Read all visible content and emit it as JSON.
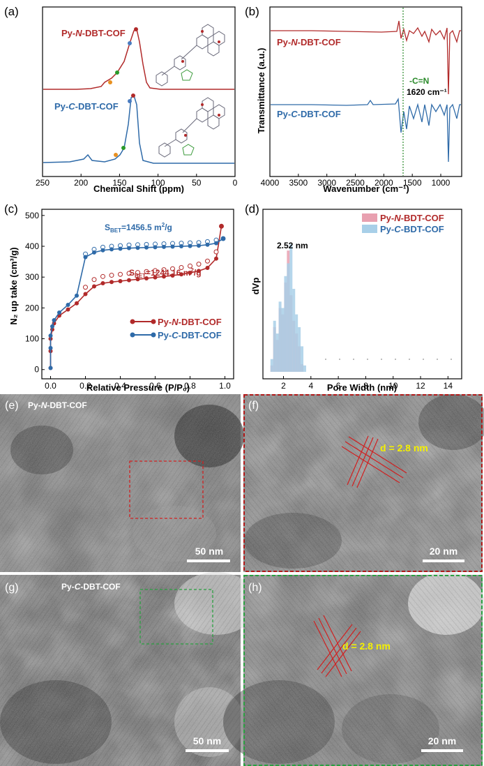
{
  "colors": {
    "red": "#b12a2a",
    "blue": "#2e6aa8",
    "green": "#2a8a2a",
    "orange": "#e89020",
    "yellow": "#f4f000",
    "pinkbar": "#e8a0b0",
    "bluebar": "#a8cfe8"
  },
  "panels": {
    "a": {
      "tag": "(a)",
      "series": [
        "Py-N-DBT-COF",
        "Py-C-DBT-COF"
      ],
      "label_red_pre": "Py-",
      "label_red_it": "N",
      "label_red_post": "-DBT-COF",
      "label_blue_pre": "Py-",
      "label_blue_it": "C",
      "label_blue_post": "-DBT-COF",
      "xlabel": "Chemical Shift (ppm)",
      "xticks": [
        "250",
        "200",
        "150",
        "100",
        "50",
        "0"
      ]
    },
    "b": {
      "tag": "(b)",
      "label_red_pre": "Py-",
      "label_red_it": "N",
      "label_red_post": "-DBT-COF",
      "label_blue_pre": "Py-",
      "label_blue_it": "C",
      "label_blue_post": "-DBT-COF",
      "ylabel": "Transmittance (a.u.)",
      "xlabel": "Wavenumber (cm⁻¹)",
      "annot_bond": "-C=N",
      "annot_wave": "1620 cm⁻¹",
      "xticks": [
        "4000",
        "3500",
        "3000",
        "2500",
        "2000",
        "1500",
        "1000"
      ]
    },
    "c": {
      "tag": "(c)",
      "ylabel": "N₂ up take  (cm³/g)",
      "xlabel": "Relative Pressure (P/P₀)",
      "sbet_blue": "Sʙᴇᴛ=1456.5 m²/g",
      "sbet_blue_main": "S",
      "sbet_blue_sub": "BET",
      "sbet_blue_rest": "=1456.5 m",
      "sbet_blue_sup": "2",
      "sbet_blue_end": "/g",
      "sbet_red_main": "S",
      "sbet_red_sub": "BET",
      "sbet_red_rest": "=1244.16 m",
      "sbet_red_sup": "2",
      "sbet_red_end": "/g",
      "legend_red_pre": "Py-",
      "legend_red_it": "N",
      "legend_red_post": "-DBT-COF",
      "legend_blue_pre": "Py-",
      "legend_blue_it": "C",
      "legend_blue_post": "-DBT-COF",
      "xticks": [
        "0.0",
        "0.2",
        "0.4",
        "0.6",
        "0.8",
        "1.0"
      ],
      "yticks": [
        "0",
        "100",
        "200",
        "300",
        "400",
        "500"
      ]
    },
    "d": {
      "tag": "(d)",
      "ylabel": "dVp",
      "xlabel": "Pore Width (nm)",
      "peak": "2.52 nm",
      "legend_red_pre": "Py-",
      "legend_red_it": "N",
      "legend_red_post": "-BDT-COF",
      "legend_blue_pre": "Py-",
      "legend_blue_it": "C",
      "legend_blue_post": "-BDT-COF",
      "xticks": [
        "2",
        "4",
        "6",
        "8",
        "10",
        "12",
        "14"
      ]
    },
    "e": {
      "tag": "(e)",
      "label_pre": "Py-",
      "label_it": "N",
      "label_post": "-DBT-COF",
      "scale": "50 nm"
    },
    "f": {
      "tag": "(f)",
      "d": "d = 2.8 nm",
      "scale": "20 nm"
    },
    "g": {
      "tag": "(g)",
      "label_pre": "Py-",
      "label_it": "C",
      "label_post": "-DBT-COF",
      "scale": "50 nm"
    },
    "h": {
      "tag": "(h)",
      "d": "d = 2.8 nm",
      "scale": "20 nm"
    }
  },
  "chart_data": [
    {
      "panel": "c",
      "type": "scatter",
      "xlabel": "Relative Pressure (P/P0)",
      "ylabel": "N2 up take (cm3/g)",
      "xlim": [
        -0.05,
        1.05
      ],
      "ylim": [
        -30,
        520
      ],
      "series": [
        {
          "name": "Py-N-DBT-COF",
          "x": [
            0.0,
            0.0,
            0.0,
            0.01,
            0.02,
            0.05,
            0.1,
            0.15,
            0.2,
            0.25,
            0.3,
            0.35,
            0.4,
            0.45,
            0.5,
            0.55,
            0.6,
            0.65,
            0.7,
            0.75,
            0.8,
            0.85,
            0.9,
            0.95,
            0.98
          ],
          "y": [
            5,
            60,
            100,
            130,
            150,
            175,
            195,
            215,
            245,
            270,
            280,
            284,
            287,
            290,
            293,
            296,
            299,
            302,
            305,
            309,
            314,
            320,
            330,
            360,
            465
          ]
        },
        {
          "name": "Py-C-DBT-COF",
          "x": [
            0.0,
            0.0,
            0.0,
            0.01,
            0.02,
            0.05,
            0.1,
            0.15,
            0.2,
            0.25,
            0.3,
            0.35,
            0.4,
            0.45,
            0.5,
            0.55,
            0.6,
            0.65,
            0.7,
            0.75,
            0.8,
            0.85,
            0.9,
            0.95,
            0.99
          ],
          "y": [
            5,
            70,
            110,
            140,
            160,
            185,
            210,
            240,
            365,
            380,
            387,
            390,
            392,
            394,
            395,
            396,
            397,
            398,
            399,
            400,
            401,
            402,
            405,
            410,
            425
          ]
        }
      ]
    },
    {
      "panel": "d",
      "type": "bar",
      "xlabel": "Pore Width (nm)",
      "ylabel": "dVp",
      "xlim": [
        0.5,
        15
      ],
      "series": [
        {
          "name": "Py-N-BDT-COF",
          "x": [
            1.2,
            1.4,
            1.6,
            1.8,
            2.0,
            2.2,
            2.4,
            2.6,
            2.8,
            3.0,
            3.2,
            3.4
          ],
          "y": [
            0.05,
            0.35,
            0.25,
            0.5,
            0.45,
            0.7,
            0.95,
            0.6,
            0.4,
            0.3,
            0.2,
            0.06
          ]
        },
        {
          "name": "Py-C-BDT-COF",
          "x": [
            1.1,
            1.3,
            1.5,
            1.7,
            1.9,
            2.1,
            2.3,
            2.5,
            2.7,
            2.9,
            3.1,
            3.3,
            3.5
          ],
          "y": [
            0.1,
            0.4,
            0.3,
            0.55,
            0.5,
            0.75,
            0.85,
            1.0,
            0.65,
            0.45,
            0.35,
            0.2,
            0.05
          ]
        }
      ]
    }
  ]
}
